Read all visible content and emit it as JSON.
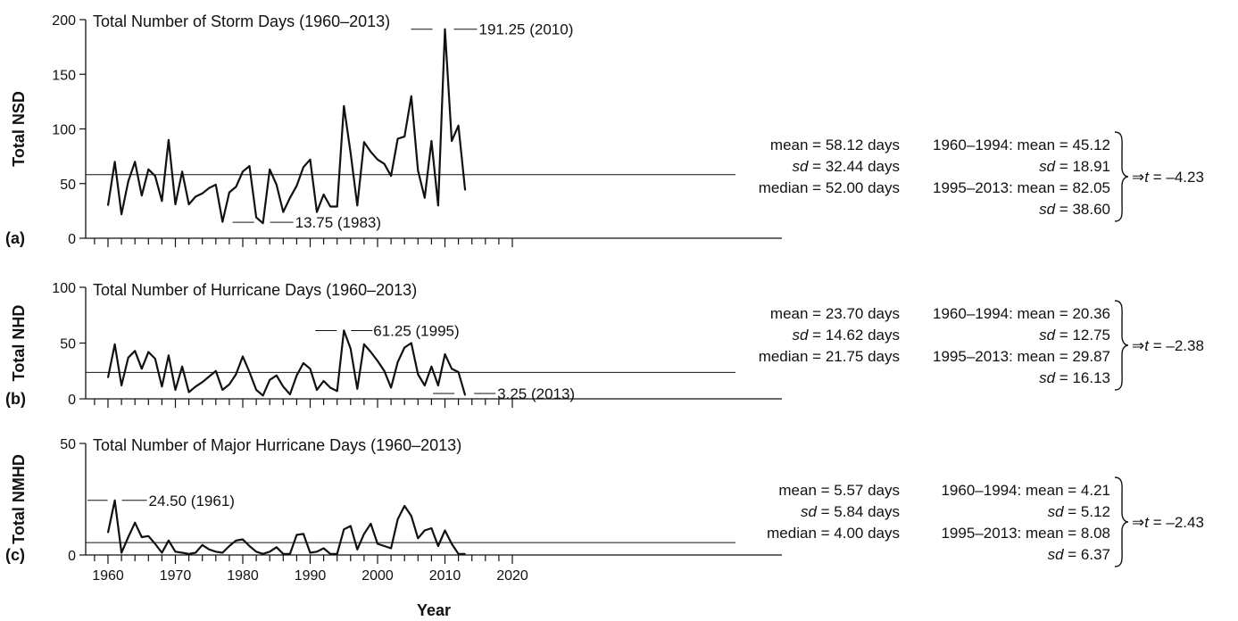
{
  "chart_data": [
    {
      "type": "line",
      "panel_label": "(a)",
      "title": "Total Number of Storm Days (1960–2013)",
      "ylabel": "Total NSD",
      "xlabel": "",
      "ylim": [
        0,
        200
      ],
      "yticks": [
        "0",
        "50",
        "100",
        "150",
        "200"
      ],
      "xlim": [
        1958,
        2020
      ],
      "x": [
        1960,
        1961,
        1962,
        1963,
        1964,
        1965,
        1966,
        1967,
        1968,
        1969,
        1970,
        1971,
        1972,
        1973,
        1974,
        1975,
        1976,
        1977,
        1978,
        1979,
        1980,
        1981,
        1982,
        1983,
        1984,
        1985,
        1986,
        1987,
        1988,
        1989,
        1990,
        1991,
        1992,
        1993,
        1994,
        1995,
        1996,
        1997,
        1998,
        1999,
        2000,
        2001,
        2002,
        2003,
        2004,
        2005,
        2006,
        2007,
        2008,
        2009,
        2010,
        2011,
        2012,
        2013
      ],
      "values": [
        30,
        70,
        22,
        52,
        70,
        39,
        63,
        57,
        34,
        90,
        31,
        61,
        31,
        38,
        41,
        46,
        49,
        15,
        42,
        47,
        61,
        66,
        19,
        13.75,
        63,
        49,
        24,
        37,
        48,
        65,
        72,
        24,
        40,
        29,
        29,
        121,
        78,
        30,
        88,
        79,
        72,
        68,
        57,
        91,
        93,
        130,
        62,
        37,
        89,
        30,
        191.25,
        89,
        103,
        44
      ],
      "mean": 58.12,
      "annotations": {
        "max": "191.25 (2010)",
        "max_x": 2010,
        "max_y": 191.25,
        "min": "13.75 (1983)",
        "min_x": 1983,
        "min_y": 13.75
      },
      "stats": {
        "mean": "mean = 58.12 days",
        "sd_label": "sd",
        "sd_value": " = 32.44 days",
        "median": "median = 52.00 days",
        "p1_mean": "1960–1994: mean = 45.12",
        "p1_sd_label": "sd",
        "p1_sd_value": " = 18.91",
        "p2_mean": "1995–2013: mean = 82.05",
        "p2_sd_label": "sd",
        "p2_sd_value": " = 38.60",
        "t_arrow": "⇒",
        "t_label": "t",
        "t_value": " = –4.23"
      }
    },
    {
      "type": "line",
      "panel_label": "(b)",
      "title": "Total Number of Hurricane Days (1960–2013)",
      "ylabel": "Total NHD",
      "xlabel": "",
      "ylim": [
        0,
        100
      ],
      "yticks": [
        "0",
        "50",
        "100"
      ],
      "xlim": [
        1958,
        2020
      ],
      "x": [
        1960,
        1961,
        1962,
        1963,
        1964,
        1965,
        1966,
        1967,
        1968,
        1969,
        1970,
        1971,
        1972,
        1973,
        1974,
        1975,
        1976,
        1977,
        1978,
        1979,
        1980,
        1981,
        1982,
        1983,
        1984,
        1985,
        1986,
        1987,
        1988,
        1989,
        1990,
        1991,
        1992,
        1993,
        1994,
        1995,
        1996,
        1997,
        1998,
        1999,
        2000,
        2001,
        2002,
        2003,
        2004,
        2005,
        2006,
        2007,
        2008,
        2009,
        2010,
        2011,
        2012,
        2013
      ],
      "values": [
        19,
        49,
        12,
        37,
        43,
        27,
        42,
        36,
        11,
        39,
        8,
        29,
        6,
        11,
        15,
        20,
        25,
        8,
        13,
        22,
        38,
        24,
        8,
        3,
        17,
        21,
        11,
        4,
        21,
        32,
        27,
        8,
        16,
        10,
        7,
        61.25,
        45,
        9,
        49,
        42,
        34,
        25,
        10,
        33,
        46,
        50,
        22,
        12,
        29,
        12,
        40,
        27,
        24,
        3.25
      ],
      "mean": 23.7,
      "annotations": {
        "max": "61.25 (1995)",
        "max_x": 1995,
        "max_y": 61.25,
        "min": "3.25 (2013)",
        "min_x": 2013,
        "min_y": 3.25
      },
      "stats": {
        "mean": "mean = 23.70 days",
        "sd_label": "sd",
        "sd_value": " = 14.62 days",
        "median": "median = 21.75 days",
        "p1_mean": "1960–1994: mean = 20.36",
        "p1_sd_label": "sd",
        "p1_sd_value": " = 12.75",
        "p2_mean": "1995–2013: mean = 29.87",
        "p2_sd_label": "sd",
        "p2_sd_value": " = 16.13",
        "t_arrow": "⇒",
        "t_label": "t",
        "t_value": " = –2.38"
      }
    },
    {
      "type": "line",
      "panel_label": "(c)",
      "title": "Total Number of Major Hurricane Days (1960–2013)",
      "ylabel": "Total NMHD",
      "xlabel": "Year",
      "ylim": [
        0,
        50
      ],
      "yticks": [
        "0",
        "50"
      ],
      "xlim": [
        1958,
        2020
      ],
      "xticks": [
        "1960",
        "1970",
        "1980",
        "1990",
        "2000",
        "2010",
        "2020"
      ],
      "x": [
        1960,
        1961,
        1962,
        1963,
        1964,
        1965,
        1966,
        1967,
        1968,
        1969,
        1970,
        1971,
        1972,
        1973,
        1974,
        1975,
        1976,
        1977,
        1978,
        1979,
        1980,
        1981,
        1982,
        1983,
        1984,
        1985,
        1986,
        1987,
        1988,
        1989,
        1990,
        1991,
        1992,
        1993,
        1994,
        1995,
        1996,
        1997,
        1998,
        1999,
        2000,
        2001,
        2002,
        2003,
        2004,
        2005,
        2006,
        2007,
        2008,
        2009,
        2010,
        2011,
        2012,
        2013
      ],
      "values": [
        10,
        24.5,
        1,
        8,
        14.5,
        8,
        8.5,
        5,
        1,
        6.5,
        1.5,
        1,
        0.5,
        1,
        4.5,
        2.5,
        1.5,
        1,
        4,
        6.5,
        7,
        4,
        1.5,
        0.5,
        1.5,
        3.5,
        0.5,
        0.5,
        9,
        9.5,
        1,
        1.5,
        3,
        0.5,
        0.5,
        11.5,
        13,
        2.5,
        9.5,
        14,
        5,
        4,
        3,
        16,
        22,
        17.5,
        7.5,
        11,
        12,
        4,
        11,
        5,
        0.5,
        0.5
      ],
      "mean": 5.57,
      "annotations": {
        "max": "24.50 (1961)",
        "max_x": 1961,
        "max_y": 24.5
      },
      "stats": {
        "mean": "mean = 5.57 days",
        "sd_label": "sd",
        "sd_value": " = 5.84 days",
        "median": "median = 4.00 days",
        "p1_mean": "1960–1994: mean = 4.21",
        "p1_sd_label": "sd",
        "p1_sd_value": " = 5.12",
        "p2_mean": "1995–2013: mean = 8.08",
        "p2_sd_label": "sd",
        "p2_sd_value": " = 6.37",
        "t_arrow": "⇒",
        "t_label": "t",
        "t_value": " = –2.43"
      }
    }
  ]
}
